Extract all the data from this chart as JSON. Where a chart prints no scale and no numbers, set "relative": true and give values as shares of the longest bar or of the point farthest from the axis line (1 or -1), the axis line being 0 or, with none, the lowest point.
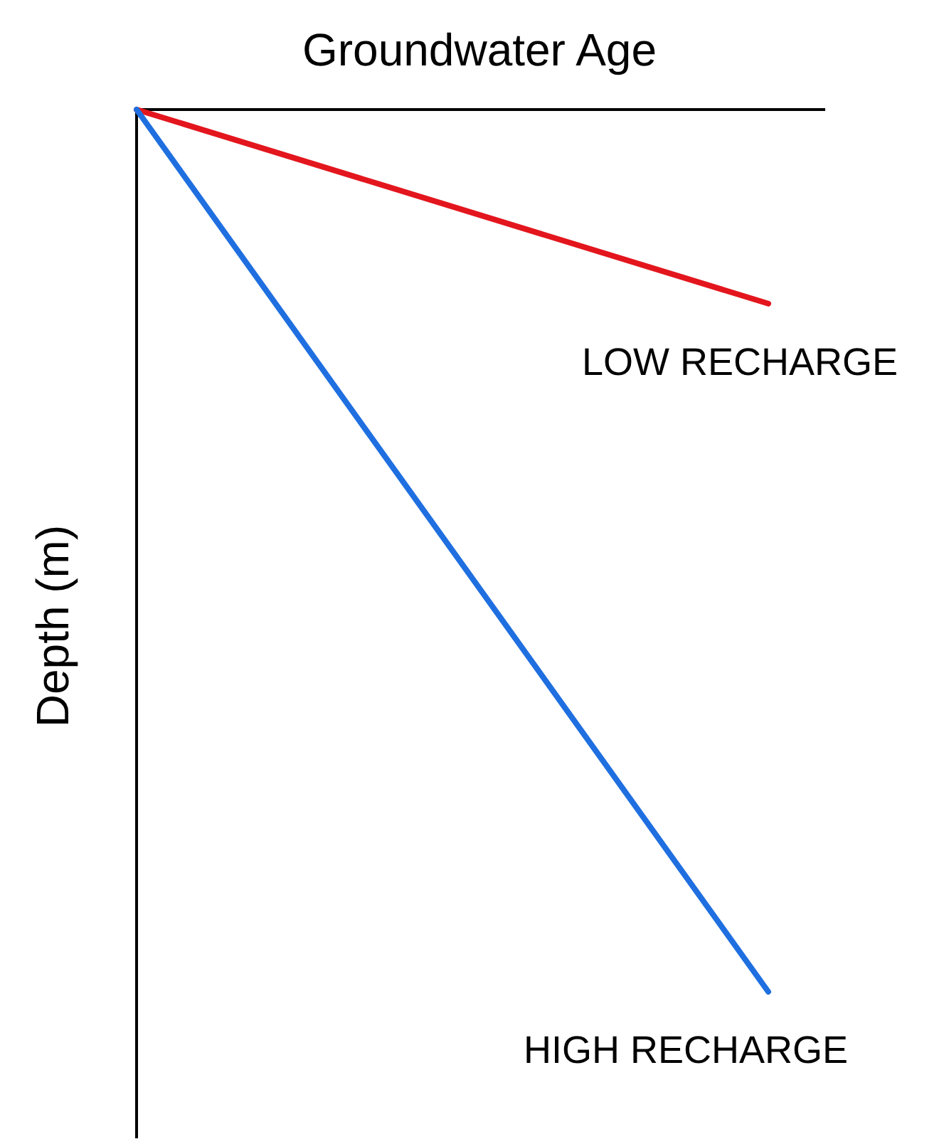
{
  "chart_data": {
    "type": "line",
    "relative": true,
    "xlabel": "Groundwater Age",
    "ylabel": "Depth (m)",
    "legend": false,
    "marker": "none",
    "line_style": "solid",
    "grid": false,
    "categories": [
      null,
      null
    ],
    "series": [
      {
        "name": "LOW RECHARGE",
        "color": "#e3161e",
        "values": [
          0,
          -0.22
        ]
      },
      {
        "name": "HIGH RECHARGE",
        "color": "#1f6fe0",
        "values": [
          0,
          -1
        ]
      }
    ]
  }
}
